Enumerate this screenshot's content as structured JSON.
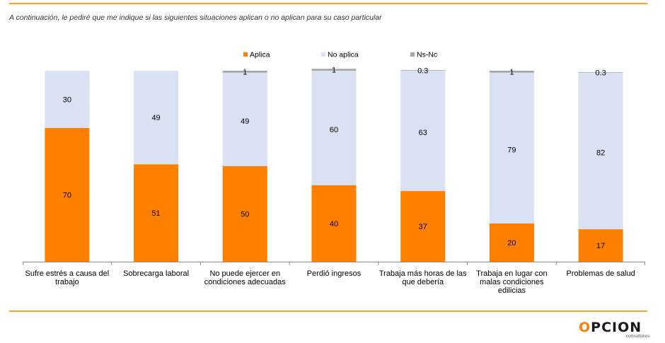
{
  "subtitle": "A continuación, le pediré que me indique si las siguientes situaciones aplican o no aplican para su caso particular",
  "logo": {
    "mark": "O",
    "word": "PCION",
    "sub": "consultores"
  },
  "chart_data": {
    "type": "bar",
    "stacked": true,
    "orientation": "vertical",
    "ylim": [
      0,
      100
    ],
    "grid": false,
    "legend_position": "top",
    "categories": [
      [
        "Sufre estrés a causa del",
        "trabajo"
      ],
      [
        "Sobrecarga laboral"
      ],
      [
        "No puede ejercer en",
        "condiciones adecuadas"
      ],
      [
        "Perdió ingresos"
      ],
      [
        "Trabaja más horas de las",
        "que debería"
      ],
      [
        "Trabaja en lugar con",
        "malas condiciones",
        "edilicias"
      ],
      [
        "Problemas de salud"
      ]
    ],
    "series": [
      {
        "name": "Aplica",
        "color": "#FF7F00",
        "values": [
          70,
          51,
          50,
          40,
          37,
          20,
          17
        ],
        "labels": [
          "70",
          "51",
          "50",
          "40",
          "37",
          "20",
          "17"
        ]
      },
      {
        "name": "No aplica",
        "color": "#D9E1F2",
        "values": [
          30,
          49,
          49,
          60,
          63,
          79,
          82
        ],
        "labels": [
          "30",
          "49",
          "49",
          "60",
          "63",
          "79",
          "82"
        ]
      },
      {
        "name": "Ns-Nc",
        "color": "#A6A6A6",
        "values": [
          0,
          0,
          1,
          1,
          0.3,
          1,
          0.3
        ],
        "labels": [
          "",
          "",
          "1",
          "1",
          "0.3",
          "1",
          "0.3"
        ]
      }
    ]
  }
}
